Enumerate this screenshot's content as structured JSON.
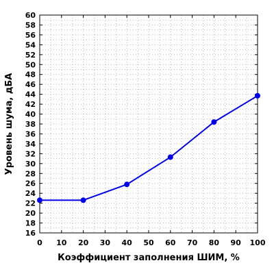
{
  "chart_data": {
    "type": "line",
    "xlabel": "Коэффициент заполнения ШИМ, %",
    "ylabel": "Уровень шума, дБА",
    "xlim": [
      0,
      100
    ],
    "ylim": [
      16,
      60
    ],
    "x_ticks": [
      0,
      10,
      20,
      30,
      40,
      50,
      60,
      70,
      80,
      90,
      100
    ],
    "y_ticks": [
      16,
      18,
      20,
      22,
      24,
      26,
      28,
      30,
      32,
      34,
      36,
      38,
      40,
      42,
      44,
      46,
      48,
      50,
      52,
      54,
      56,
      58,
      60
    ],
    "grid": true,
    "legend": "none",
    "series": [
      {
        "color": "#0000ee",
        "x": [
          0,
          20,
          40,
          60,
          80,
          100
        ],
        "y": [
          22.6,
          22.6,
          25.8,
          31.3,
          38.4,
          43.7
        ]
      }
    ]
  }
}
